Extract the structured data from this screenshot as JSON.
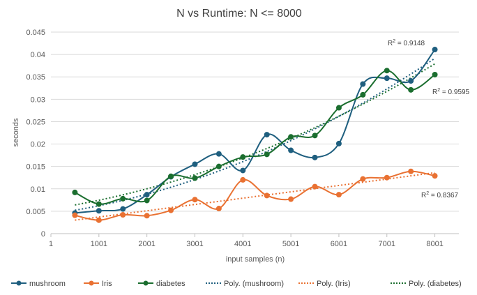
{
  "chart_data": {
    "type": "line",
    "title": "N vs Runtime: N <= 8000",
    "xlabel": "input samples (n)",
    "ylabel": "seconds",
    "xlim": [
      1,
      8501
    ],
    "ylim": [
      0,
      0.045
    ],
    "x_ticks": [
      "1",
      "1001",
      "2001",
      "3001",
      "4001",
      "5001",
      "6001",
      "7001",
      "8001"
    ],
    "y_ticks": [
      "0",
      "0.005",
      "0.01",
      "0.015",
      "0.02",
      "0.025",
      "0.03",
      "0.035",
      "0.04",
      "0.045"
    ],
    "grid": true,
    "legend_position": "bottom",
    "x": [
      501,
      1001,
      1501,
      2001,
      2501,
      3001,
      3501,
      4001,
      4501,
      5001,
      5501,
      6001,
      6501,
      7001,
      7501,
      8001
    ],
    "series": [
      {
        "name": "mushroom",
        "color": "#1f5f7f",
        "values": [
          0.0046,
          0.0051,
          0.0055,
          0.0087,
          0.0127,
          0.0155,
          0.0178,
          0.0141,
          0.0221,
          0.0186,
          0.017,
          0.0201,
          0.0334,
          0.0347,
          0.0341,
          0.0411
        ],
        "trend_label": "Poly. (mushroom)",
        "r2_label": "R",
        "r2_sup": "2",
        "r2_value": " = 0.9148"
      },
      {
        "name": "Iris",
        "color": "#e97132",
        "values": [
          0.0041,
          0.003,
          0.0042,
          0.004,
          0.0052,
          0.0076,
          0.0056,
          0.012,
          0.0085,
          0.0077,
          0.0105,
          0.0087,
          0.0122,
          0.0125,
          0.0139,
          0.0129
        ],
        "trend_label": "Poly. (Iris)",
        "r2_label": "R",
        "r2_sup": "2",
        "r2_value": " = 0.8367"
      },
      {
        "name": "diabetes",
        "color": "#1b6e2f",
        "values": [
          0.0092,
          0.0066,
          0.0078,
          0.0074,
          0.0128,
          0.0124,
          0.015,
          0.0171,
          0.0177,
          0.0216,
          0.0219,
          0.0281,
          0.031,
          0.0364,
          0.0321,
          0.0355
        ],
        "trend_label": "Poly. (diabetes)",
        "r2_label": "R",
        "r2_sup": "2",
        "r2_value": " = 0.9595"
      }
    ]
  }
}
